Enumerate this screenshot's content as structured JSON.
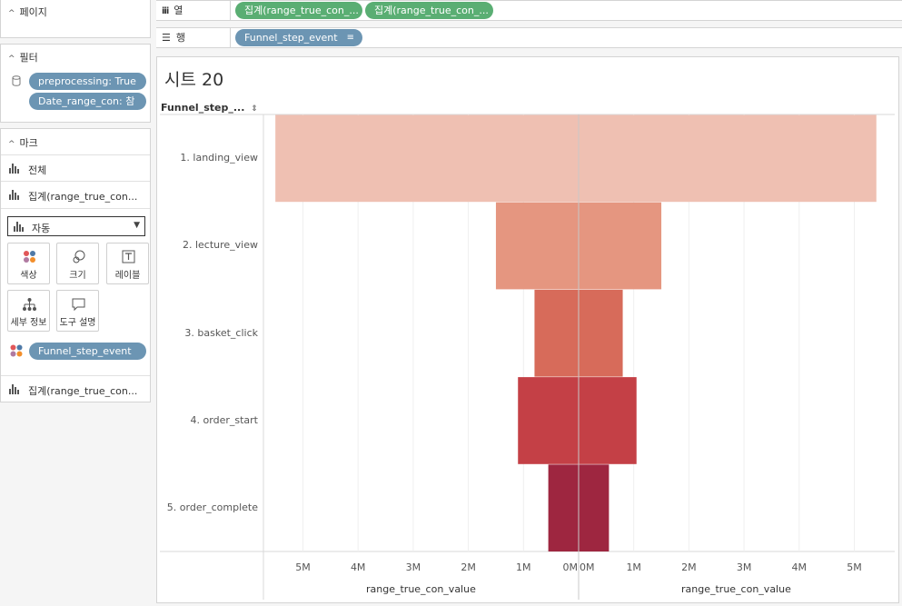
{
  "sidebar": {
    "pages": {
      "title": "페이지"
    },
    "filters": {
      "title": "필터",
      "items": [
        "preprocessing: True",
        "Date_range_con: 참"
      ]
    },
    "marks": {
      "title": "마크",
      "all_label": "전체",
      "measure_label": "집계(range_true_con...",
      "mark_type": "자동",
      "buttons": [
        "색상",
        "크기",
        "레이블",
        "세부 정보",
        "도구 설명"
      ],
      "color_pill": "Funnel_step_event",
      "measure2_label": "집계(range_true_con..."
    }
  },
  "shelves": {
    "columns": {
      "label": "열",
      "pills": [
        "집계(range_true_con_...",
        "집계(range_true_con_..."
      ]
    },
    "rows": {
      "label": "행",
      "pills": [
        "Funnel_step_event"
      ]
    }
  },
  "sheet": {
    "title": "시트 20",
    "row_header": "Funnel_step_..."
  },
  "colors": {
    "accent_green": "#5aae73",
    "accent_blue": "#6c95b3",
    "bar_colors": [
      "#efc0b2",
      "#e59680",
      "#d76b5a",
      "#c44046",
      "#9e2640"
    ]
  },
  "chart_data": {
    "type": "bar",
    "orientation": "horizontal",
    "categories": [
      "1. landing_view",
      "2. lecture_view",
      "3. basket_click",
      "4. order_start",
      "5. order_complete"
    ],
    "series": [
      {
        "values": [
          5.5,
          1.5,
          0.8,
          1.1,
          0.55
        ]
      },
      {
        "values": [
          5.4,
          1.5,
          0.8,
          1.05,
          0.55
        ]
      }
    ],
    "panes": [
      {
        "xlabel": "range_true_con_value",
        "direction": "reversed",
        "xlim": [
          0,
          5.5
        ],
        "ticks": [
          5,
          4,
          3,
          2,
          1,
          0
        ],
        "tick_labels": [
          "5M",
          "4M",
          "3M",
          "2M",
          "1M",
          "0M"
        ]
      },
      {
        "xlabel": "range_true_con_value",
        "direction": "normal",
        "xlim": [
          0,
          5.5
        ],
        "ticks": [
          0,
          1,
          2,
          3,
          4,
          5
        ],
        "tick_labels": [
          "0M",
          "1M",
          "2M",
          "3M",
          "4M",
          "5M"
        ]
      }
    ],
    "unit": "M",
    "grid": true,
    "legend": "none"
  }
}
